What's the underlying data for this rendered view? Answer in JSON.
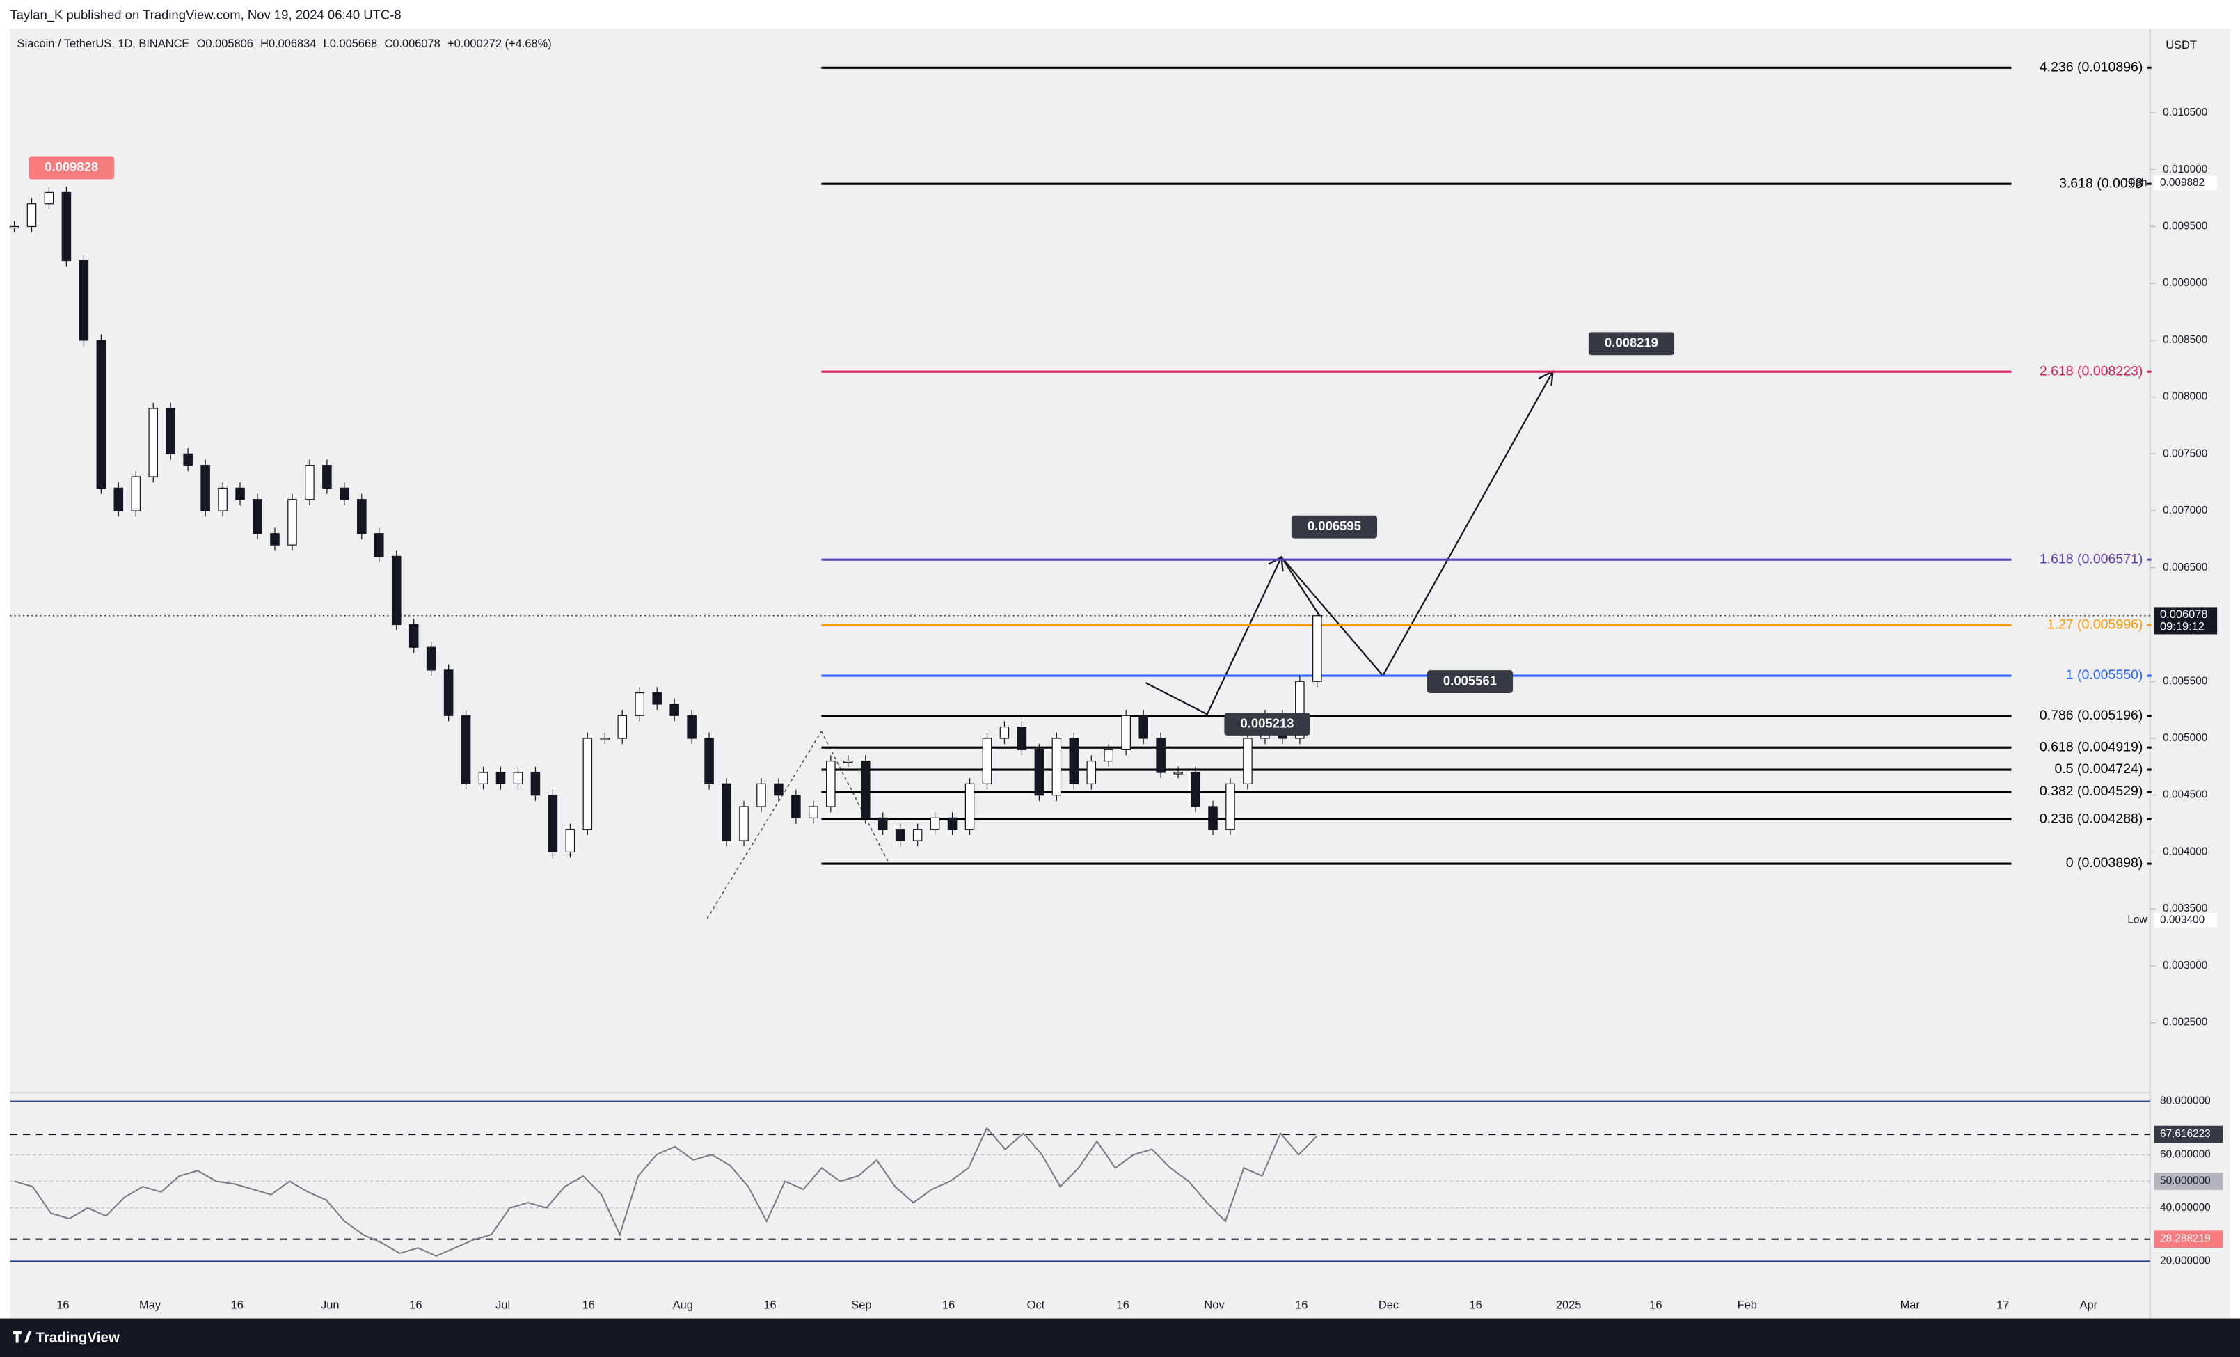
{
  "header": {
    "published": "Taylan_K published on TradingView.com, Nov 19, 2024 06:40 UTC-8",
    "symbol": "Siacoin / TetherUS, 1D, BINANCE",
    "open": "O0.005806",
    "high": "H0.006834",
    "low": "L0.005668",
    "close": "C0.006078",
    "change": "+0.000272 (+4.68%)",
    "currency": "USDT"
  },
  "price_scale": {
    "range": [
      0.001884,
      0.01124
    ],
    "ticks": [
      {
        "value": 0.0105,
        "label": "0.010500"
      },
      {
        "value": 0.01,
        "label": "0.010000"
      },
      {
        "value": 0.0095,
        "label": "0.009500"
      },
      {
        "value": 0.009,
        "label": "0.009000"
      },
      {
        "value": 0.0085,
        "label": "0.008500"
      },
      {
        "value": 0.008,
        "label": "0.008000"
      },
      {
        "value": 0.0075,
        "label": "0.007500"
      },
      {
        "value": 0.007,
        "label": "0.007000"
      },
      {
        "value": 0.0065,
        "label": "0.006500"
      },
      {
        "value": 0.0055,
        "label": "0.005500"
      },
      {
        "value": 0.005,
        "label": "0.005000"
      },
      {
        "value": 0.0045,
        "label": "0.004500"
      },
      {
        "value": 0.004,
        "label": "0.004000"
      },
      {
        "value": 0.0035,
        "label": "0.003500"
      },
      {
        "value": 0.003,
        "label": "0.003000"
      },
      {
        "value": 0.0025,
        "label": "0.002500"
      }
    ],
    "high": {
      "name": "High",
      "value": 0.009882,
      "label": "0.009882"
    },
    "low": {
      "name": "Low",
      "value": 0.0034,
      "label": "0.003400"
    },
    "last": {
      "value": 0.006078,
      "label": "0.006078",
      "countdown": "09:19:12"
    }
  },
  "fib_levels": [
    {
      "label": "4.236 (0.010896)",
      "value": 0.010896,
      "color": "#000000"
    },
    {
      "label": "3.618 (0.0098",
      "value": 0.009875,
      "color": "#000000"
    },
    {
      "label": "2.618 (0.008223)",
      "value": 0.008223,
      "color": "#d81b60"
    },
    {
      "label": "1.618 (0.006571)",
      "value": 0.006571,
      "color": "#5b3fb5"
    },
    {
      "label": "1.27 (0.005996)",
      "value": 0.005996,
      "color": "#ff9800"
    },
    {
      "label": "1 (0.005550)",
      "value": 0.00555,
      "color": "#2962ff"
    },
    {
      "label": "0.786 (0.005196)",
      "value": 0.005196,
      "color": "#000000"
    },
    {
      "label": "0.618 (0.004919)",
      "value": 0.004919,
      "color": "#000000"
    },
    {
      "label": "0.5 (0.004724)",
      "value": 0.004724,
      "color": "#000000"
    },
    {
      "label": "0.382 (0.004529)",
      "value": 0.004529,
      "color": "#000000"
    },
    {
      "label": "0.236 (0.004288)",
      "value": 0.004288,
      "color": "#000000"
    },
    {
      "label": "0 (0.003898)",
      "value": 0.003898,
      "color": "#000000"
    }
  ],
  "callouts": [
    {
      "label": "0.009828",
      "value": 0.009828,
      "color": "#f77c80"
    },
    {
      "label": "0.008219",
      "value": 0.008219,
      "color": "#363a45"
    },
    {
      "label": "0.006595",
      "value": 0.006595,
      "color": "#363a45"
    },
    {
      "label": "0.005561",
      "value": 0.005561,
      "color": "#363a45"
    },
    {
      "label": "0.005213",
      "value": 0.005213,
      "color": "#363a45"
    }
  ],
  "candles": {
    "closes": [
      0.0095,
      0.0097,
      0.0098,
      0.0092,
      0.0085,
      0.0072,
      0.007,
      0.0073,
      0.0079,
      0.0075,
      0.0074,
      0.007,
      0.0072,
      0.0071,
      0.0068,
      0.0067,
      0.0071,
      0.0074,
      0.0072,
      0.0071,
      0.0068,
      0.0066,
      0.006,
      0.0058,
      0.0056,
      0.0052,
      0.0046,
      0.0047,
      0.0046,
      0.0047,
      0.0045,
      0.004,
      0.0042,
      0.005,
      0.005,
      0.0052,
      0.0054,
      0.0053,
      0.0052,
      0.005,
      0.0046,
      0.0041,
      0.0044,
      0.0046,
      0.0045,
      0.0043,
      0.0044,
      0.0048,
      0.0048,
      0.0043,
      0.0042,
      0.0041,
      0.0042,
      0.0043,
      0.0042,
      0.0046,
      0.005,
      0.0051,
      0.0049,
      0.0045,
      0.005,
      0.0046,
      0.0048,
      0.0049,
      0.0052,
      0.005,
      0.0047,
      0.0047,
      0.0044,
      0.0042,
      0.0046,
      0.005,
      0.0052,
      0.005,
      0.0055,
      0.006078
    ]
  },
  "rsi": {
    "range": [
      8.2,
      84.3
    ],
    "ticks": [
      {
        "value": 80,
        "label": "80.000000"
      },
      {
        "value": 60,
        "label": "60.000000"
      },
      {
        "value": 50,
        "label": "50.000000"
      },
      {
        "value": 40,
        "label": "40.000000"
      },
      {
        "value": 20,
        "label": "20.000000"
      }
    ],
    "badges": [
      {
        "value": 67.616223,
        "label": "67.616223",
        "color": "#363a45"
      },
      {
        "value": 28.288219,
        "label": "28.288219",
        "color": "#f77c80"
      }
    ],
    "values": [
      50,
      48,
      38,
      36,
      40,
      37,
      44,
      48,
      46,
      52,
      54,
      50,
      49,
      47,
      45,
      50,
      46,
      43,
      35,
      30,
      27,
      23,
      25,
      22,
      25,
      28,
      30,
      40,
      42,
      40,
      48,
      52,
      45,
      30,
      52,
      60,
      63,
      58,
      60,
      56,
      48,
      35,
      50,
      47,
      55,
      50,
      52,
      58,
      48,
      42,
      47,
      50,
      55,
      70,
      62,
      68,
      60,
      48,
      55,
      65,
      55,
      60,
      62,
      55,
      50,
      42,
      35,
      55,
      52,
      68,
      60,
      67
    ]
  },
  "time_axis": [
    "16",
    "May",
    "16",
    "Jun",
    "16",
    "Jul",
    "16",
    "Aug",
    "16",
    "Sep",
    "16",
    "Oct",
    "16",
    "Nov",
    "16",
    "Dec",
    "16",
    "2025",
    "16",
    "Feb",
    "Mar",
    "17",
    "Apr"
  ],
  "footer": {
    "brand": "TradingView"
  }
}
